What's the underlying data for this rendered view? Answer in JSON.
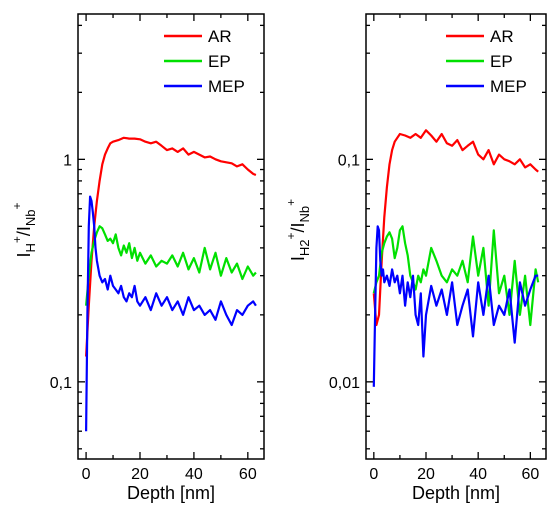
{
  "colors": {
    "AR": "#ff0000",
    "EP": "#00e000",
    "MEP": "#0000ff"
  },
  "chart_data": [
    {
      "type": "line",
      "xlabel": "Depth [nm]",
      "ylabel_main": "I",
      "ylabel_sub1": "H",
      "ylabel_sup1": "+",
      "ylabel_slash": "/I",
      "ylabel_sub2": "Nb",
      "ylabel_sup2": "+",
      "xlim": [
        -3,
        66
      ],
      "ylim": [
        0.045,
        4.5
      ],
      "yscale": "log",
      "xticks": [
        0,
        20,
        40,
        60
      ],
      "xtick_labels": [
        "0",
        "20",
        "40",
        "60"
      ],
      "yticks": [
        0.1,
        1
      ],
      "ytick_labels": [
        "0,1",
        "1"
      ],
      "legend": [
        "AR",
        "EP",
        "MEP"
      ],
      "legend_position": "top-right",
      "series": [
        {
          "name": "AR",
          "x": [
            0,
            1,
            2,
            3,
            4,
            5,
            6,
            7,
            8,
            9,
            10,
            12,
            14,
            16,
            18,
            20,
            22,
            24,
            26,
            28,
            30,
            32,
            34,
            36,
            38,
            40,
            42,
            44,
            46,
            48,
            50,
            52,
            54,
            56,
            58,
            60,
            62,
            63
          ],
          "y": [
            0.13,
            0.22,
            0.35,
            0.5,
            0.65,
            0.8,
            0.95,
            1.05,
            1.12,
            1.18,
            1.2,
            1.22,
            1.25,
            1.24,
            1.24,
            1.23,
            1.2,
            1.18,
            1.2,
            1.15,
            1.1,
            1.12,
            1.08,
            1.12,
            1.05,
            1.08,
            1.05,
            1.02,
            1.03,
            1.0,
            0.98,
            0.97,
            0.96,
            0.93,
            0.95,
            0.9,
            0.86,
            0.85
          ]
        },
        {
          "name": "EP",
          "x": [
            0,
            1,
            2,
            3,
            4,
            5,
            6,
            7,
            8,
            9,
            10,
            11,
            12,
            13,
            14,
            15,
            16,
            17,
            18,
            19,
            20,
            22,
            24,
            26,
            28,
            30,
            32,
            34,
            36,
            38,
            40,
            42,
            44,
            46,
            48,
            50,
            52,
            54,
            56,
            58,
            60,
            62,
            63
          ],
          "y": [
            0.22,
            0.3,
            0.38,
            0.43,
            0.47,
            0.5,
            0.49,
            0.46,
            0.43,
            0.44,
            0.42,
            0.46,
            0.4,
            0.37,
            0.41,
            0.38,
            0.42,
            0.36,
            0.4,
            0.35,
            0.38,
            0.34,
            0.37,
            0.33,
            0.35,
            0.34,
            0.37,
            0.33,
            0.38,
            0.32,
            0.36,
            0.31,
            0.4,
            0.32,
            0.38,
            0.3,
            0.36,
            0.31,
            0.34,
            0.29,
            0.33,
            0.3,
            0.31
          ]
        },
        {
          "name": "MEP",
          "x": [
            0,
            0.5,
            1,
            1.5,
            2,
            2.5,
            3,
            3.5,
            4,
            5,
            6,
            7,
            8,
            9,
            10,
            11,
            12,
            13,
            14,
            15,
            16,
            17,
            18,
            19,
            20,
            22,
            24,
            26,
            28,
            30,
            32,
            34,
            36,
            38,
            40,
            42,
            44,
            46,
            48,
            50,
            52,
            54,
            56,
            58,
            60,
            62,
            63
          ],
          "y": [
            0.06,
            0.2,
            0.5,
            0.68,
            0.65,
            0.58,
            0.5,
            0.4,
            0.35,
            0.3,
            0.28,
            0.29,
            0.26,
            0.3,
            0.27,
            0.26,
            0.25,
            0.27,
            0.24,
            0.23,
            0.25,
            0.24,
            0.27,
            0.23,
            0.22,
            0.24,
            0.21,
            0.25,
            0.22,
            0.24,
            0.21,
            0.23,
            0.2,
            0.24,
            0.21,
            0.22,
            0.2,
            0.21,
            0.19,
            0.23,
            0.2,
            0.18,
            0.21,
            0.2,
            0.22,
            0.23,
            0.22
          ]
        }
      ]
    },
    {
      "type": "line",
      "xlabel": "Depth [nm]",
      "ylabel_main": "I",
      "ylabel_sub1": "H2",
      "ylabel_sup1": "+",
      "ylabel_slash": "/I",
      "ylabel_sub2": "Nb",
      "ylabel_sup2": "+",
      "xlim": [
        -3,
        66
      ],
      "ylim": [
        0.0045,
        0.45
      ],
      "yscale": "log",
      "xticks": [
        0,
        20,
        40,
        60
      ],
      "xtick_labels": [
        "0",
        "20",
        "40",
        "60"
      ],
      "yticks": [
        0.01,
        0.1
      ],
      "ytick_labels": [
        "0,01",
        "0,1"
      ],
      "legend": [
        "AR",
        "EP",
        "MEP"
      ],
      "legend_position": "top-right",
      "series": [
        {
          "name": "AR",
          "x": [
            0,
            1,
            2,
            3,
            4,
            5,
            6,
            7,
            8,
            9,
            10,
            12,
            14,
            16,
            18,
            20,
            22,
            24,
            26,
            28,
            30,
            32,
            34,
            36,
            38,
            40,
            42,
            44,
            46,
            48,
            50,
            52,
            54,
            56,
            58,
            60,
            62,
            63
          ],
          "y": [
            0.025,
            0.018,
            0.02,
            0.035,
            0.055,
            0.075,
            0.095,
            0.11,
            0.12,
            0.125,
            0.13,
            0.128,
            0.125,
            0.13,
            0.125,
            0.135,
            0.128,
            0.12,
            0.13,
            0.118,
            0.115,
            0.122,
            0.11,
            0.115,
            0.12,
            0.105,
            0.1,
            0.11,
            0.095,
            0.105,
            0.1,
            0.098,
            0.095,
            0.1,
            0.092,
            0.095,
            0.09,
            0.088
          ]
        },
        {
          "name": "EP",
          "x": [
            0,
            1,
            2,
            3,
            4,
            5,
            6,
            7,
            8,
            9,
            10,
            11,
            12,
            13,
            14,
            15,
            16,
            17,
            18,
            19,
            20,
            22,
            24,
            26,
            28,
            30,
            32,
            34,
            36,
            38,
            40,
            42,
            44,
            46,
            48,
            50,
            52,
            54,
            56,
            58,
            60,
            62,
            63
          ],
          "y": [
            0.025,
            0.028,
            0.03,
            0.038,
            0.042,
            0.045,
            0.047,
            0.044,
            0.036,
            0.04,
            0.048,
            0.05,
            0.042,
            0.037,
            0.03,
            0.028,
            0.026,
            0.03,
            0.028,
            0.032,
            0.03,
            0.04,
            0.035,
            0.03,
            0.028,
            0.032,
            0.03,
            0.035,
            0.028,
            0.045,
            0.03,
            0.04,
            0.022,
            0.048,
            0.025,
            0.03,
            0.02,
            0.035,
            0.02,
            0.03,
            0.018,
            0.032,
            0.028
          ]
        },
        {
          "name": "MEP",
          "x": [
            0,
            0.5,
            1,
            1.5,
            2,
            2.5,
            3,
            3.5,
            4,
            5,
            6,
            7,
            8,
            9,
            10,
            11,
            12,
            13,
            14,
            15,
            16,
            17,
            18,
            19,
            20,
            22,
            24,
            26,
            28,
            30,
            32,
            34,
            36,
            38,
            40,
            42,
            44,
            46,
            48,
            50,
            52,
            54,
            56,
            58,
            60,
            62,
            63
          ],
          "y": [
            0.0095,
            0.02,
            0.04,
            0.05,
            0.048,
            0.035,
            0.03,
            0.032,
            0.028,
            0.03,
            0.027,
            0.032,
            0.028,
            0.03,
            0.025,
            0.03,
            0.022,
            0.028,
            0.024,
            0.03,
            0.02,
            0.018,
            0.025,
            0.013,
            0.02,
            0.027,
            0.022,
            0.026,
            0.02,
            0.028,
            0.018,
            0.022,
            0.026,
            0.016,
            0.028,
            0.02,
            0.03,
            0.018,
            0.022,
            0.02,
            0.026,
            0.015,
            0.028,
            0.022,
            0.026,
            0.03,
            0.03
          ]
        }
      ]
    }
  ]
}
